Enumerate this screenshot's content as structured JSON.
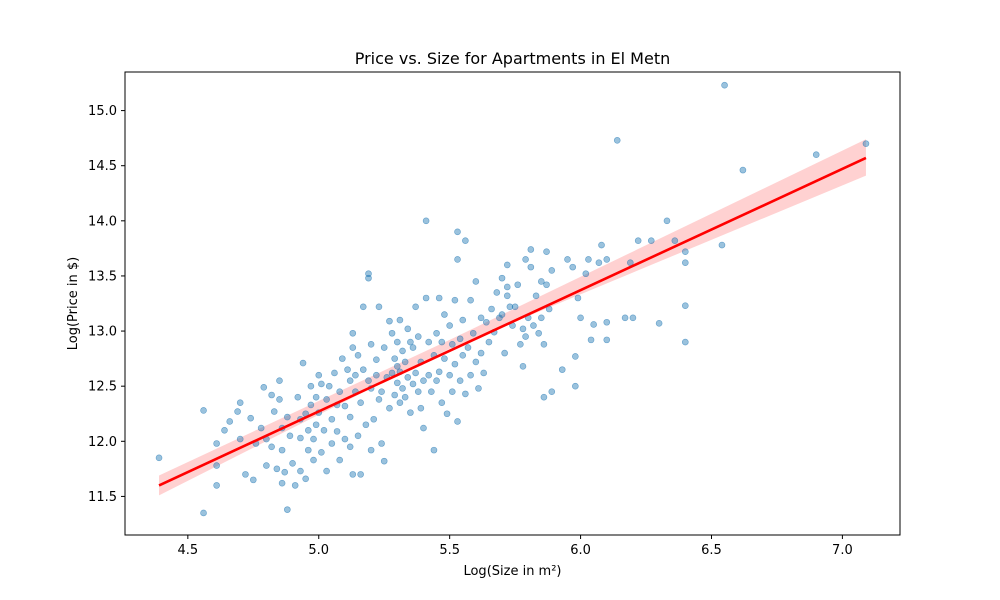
{
  "chart_data": {
    "type": "scatter",
    "title": "Price vs. Size for Apartments in El Metn",
    "xlabel": "Log(Size in m²)",
    "ylabel": "Log(Price in $)",
    "xlim": [
      4.26,
      7.22
    ],
    "ylim": [
      11.15,
      15.35
    ],
    "xticks": [
      "4.5",
      "5.0",
      "5.5",
      "6.0",
      "6.5",
      "7.0"
    ],
    "yticks": [
      "11.5",
      "12.0",
      "12.5",
      "13.0",
      "13.5",
      "14.0",
      "14.5",
      "15.0"
    ],
    "grid": false,
    "colors": {
      "points": "#1f77b4",
      "regression": "#ff0000",
      "band": "#ffb3b3"
    },
    "regression": {
      "x": [
        4.39,
        7.09
      ],
      "y": [
        11.6,
        14.57
      ]
    },
    "confidence_band": {
      "x": [
        4.39,
        5.5,
        7.09
      ],
      "lower": [
        11.51,
        12.84,
        14.41
      ],
      "upper": [
        11.69,
        12.92,
        14.74
      ]
    },
    "points": [
      [
        4.39,
        11.85
      ],
      [
        4.56,
        11.35
      ],
      [
        4.56,
        12.28
      ],
      [
        4.61,
        11.98
      ],
      [
        4.61,
        11.78
      ],
      [
        4.61,
        11.6
      ],
      [
        4.64,
        12.1
      ],
      [
        4.66,
        12.18
      ],
      [
        4.69,
        12.27
      ],
      [
        4.7,
        12.35
      ],
      [
        4.7,
        12.02
      ],
      [
        4.72,
        11.7
      ],
      [
        4.74,
        12.21
      ],
      [
        4.75,
        11.65
      ],
      [
        4.76,
        11.98
      ],
      [
        4.78,
        12.12
      ],
      [
        4.79,
        12.49
      ],
      [
        4.8,
        12.02
      ],
      [
        4.8,
        11.78
      ],
      [
        4.82,
        12.42
      ],
      [
        4.82,
        11.95
      ],
      [
        4.83,
        12.27
      ],
      [
        4.84,
        11.75
      ],
      [
        4.85,
        12.55
      ],
      [
        4.85,
        12.38
      ],
      [
        4.86,
        12.12
      ],
      [
        4.86,
        11.92
      ],
      [
        4.86,
        11.62
      ],
      [
        4.87,
        11.72
      ],
      [
        4.88,
        12.22
      ],
      [
        4.88,
        11.38
      ],
      [
        4.89,
        12.05
      ],
      [
        4.9,
        11.8
      ],
      [
        4.91,
        11.6
      ],
      [
        4.92,
        12.4
      ],
      [
        4.93,
        12.2
      ],
      [
        4.93,
        12.03
      ],
      [
        4.93,
        11.73
      ],
      [
        4.94,
        12.71
      ],
      [
        4.95,
        12.25
      ],
      [
        4.95,
        11.66
      ],
      [
        4.96,
        12.1
      ],
      [
        4.96,
        11.92
      ],
      [
        4.97,
        12.5
      ],
      [
        4.97,
        12.33
      ],
      [
        4.98,
        12.02
      ],
      [
        4.98,
        11.83
      ],
      [
        4.99,
        12.4
      ],
      [
        4.99,
        12.15
      ],
      [
        5.0,
        12.6
      ],
      [
        5.0,
        12.26
      ],
      [
        5.01,
        11.9
      ],
      [
        5.01,
        12.52
      ],
      [
        5.02,
        12.1
      ],
      [
        5.03,
        11.73
      ],
      [
        5.03,
        12.38
      ],
      [
        5.04,
        12.5
      ],
      [
        5.05,
        12.2
      ],
      [
        5.05,
        11.98
      ],
      [
        5.06,
        12.62
      ],
      [
        5.07,
        12.33
      ],
      [
        5.07,
        12.09
      ],
      [
        5.08,
        11.83
      ],
      [
        5.08,
        12.45
      ],
      [
        5.09,
        12.75
      ],
      [
        5.1,
        12.02
      ],
      [
        5.1,
        12.32
      ],
      [
        5.11,
        12.65
      ],
      [
        5.12,
        12.55
      ],
      [
        5.12,
        11.95
      ],
      [
        5.12,
        12.22
      ],
      [
        5.13,
        12.85
      ],
      [
        5.13,
        12.98
      ],
      [
        5.13,
        11.7
      ],
      [
        5.14,
        12.45
      ],
      [
        5.14,
        12.6
      ],
      [
        5.15,
        12.78
      ],
      [
        5.15,
        12.05
      ],
      [
        5.16,
        12.35
      ],
      [
        5.16,
        11.7
      ],
      [
        5.17,
        13.22
      ],
      [
        5.17,
        12.65
      ],
      [
        5.18,
        12.15
      ],
      [
        5.19,
        12.55
      ],
      [
        5.19,
        13.48
      ],
      [
        5.19,
        13.52
      ],
      [
        5.2,
        12.88
      ],
      [
        5.2,
        11.92
      ],
      [
        5.2,
        12.48
      ],
      [
        5.21,
        12.2
      ],
      [
        5.22,
        12.74
      ],
      [
        5.22,
        12.6
      ],
      [
        5.23,
        13.22
      ],
      [
        5.23,
        12.38
      ],
      [
        5.24,
        11.98
      ],
      [
        5.24,
        12.45
      ],
      [
        5.25,
        12.85
      ],
      [
        5.25,
        11.82
      ],
      [
        5.26,
        12.58
      ],
      [
        5.27,
        12.3
      ],
      [
        5.27,
        13.09
      ],
      [
        5.28,
        12.62
      ],
      [
        5.28,
        12.98
      ],
      [
        5.29,
        12.42
      ],
      [
        5.29,
        12.75
      ],
      [
        5.3,
        12.68
      ],
      [
        5.3,
        12.53
      ],
      [
        5.3,
        12.9
      ],
      [
        5.31,
        12.35
      ],
      [
        5.31,
        13.1
      ],
      [
        5.31,
        12.63
      ],
      [
        5.32,
        12.82
      ],
      [
        5.32,
        12.48
      ],
      [
        5.33,
        12.72
      ],
      [
        5.33,
        12.4
      ],
      [
        5.34,
        13.02
      ],
      [
        5.34,
        12.58
      ],
      [
        5.35,
        12.26
      ],
      [
        5.35,
        12.9
      ],
      [
        5.36,
        12.52
      ],
      [
        5.36,
        12.85
      ],
      [
        5.37,
        13.22
      ],
      [
        5.37,
        12.62
      ],
      [
        5.38,
        12.45
      ],
      [
        5.38,
        12.95
      ],
      [
        5.39,
        12.72
      ],
      [
        5.39,
        12.3
      ],
      [
        5.4,
        12.12
      ],
      [
        5.4,
        12.55
      ],
      [
        5.41,
        13.3
      ],
      [
        5.41,
        14.0
      ],
      [
        5.42,
        12.9
      ],
      [
        5.42,
        12.6
      ],
      [
        5.43,
        12.45
      ],
      [
        5.44,
        11.92
      ],
      [
        5.44,
        12.78
      ],
      [
        5.45,
        12.98
      ],
      [
        5.45,
        12.55
      ],
      [
        5.46,
        13.3
      ],
      [
        5.46,
        12.63
      ],
      [
        5.47,
        12.35
      ],
      [
        5.47,
        12.9
      ],
      [
        5.48,
        13.15
      ],
      [
        5.48,
        12.75
      ],
      [
        5.49,
        12.25
      ],
      [
        5.5,
        13.05
      ],
      [
        5.5,
        12.6
      ],
      [
        5.51,
        12.45
      ],
      [
        5.51,
        12.88
      ],
      [
        5.52,
        13.28
      ],
      [
        5.52,
        12.7
      ],
      [
        5.53,
        13.9
      ],
      [
        5.53,
        13.65
      ],
      [
        5.53,
        12.18
      ],
      [
        5.54,
        12.93
      ],
      [
        5.54,
        12.55
      ],
      [
        5.55,
        13.1
      ],
      [
        5.55,
        12.78
      ],
      [
        5.56,
        12.43
      ],
      [
        5.56,
        13.82
      ],
      [
        5.57,
        12.85
      ],
      [
        5.58,
        13.28
      ],
      [
        5.58,
        12.6
      ],
      [
        5.59,
        12.98
      ],
      [
        5.6,
        13.45
      ],
      [
        5.6,
        12.72
      ],
      [
        5.61,
        12.48
      ],
      [
        5.62,
        13.12
      ],
      [
        5.62,
        12.8
      ],
      [
        5.63,
        12.62
      ],
      [
        5.64,
        13.08
      ],
      [
        5.65,
        12.9
      ],
      [
        5.66,
        13.2
      ],
      [
        5.67,
        12.99
      ],
      [
        5.68,
        13.35
      ],
      [
        5.69,
        13.12
      ],
      [
        5.7,
        13.48
      ],
      [
        5.7,
        13.15
      ],
      [
        5.71,
        12.8
      ],
      [
        5.72,
        13.4
      ],
      [
        5.72,
        13.6
      ],
      [
        5.72,
        13.32
      ],
      [
        5.73,
        13.22
      ],
      [
        5.74,
        13.05
      ],
      [
        5.75,
        13.22
      ],
      [
        5.76,
        13.42
      ],
      [
        5.77,
        12.88
      ],
      [
        5.78,
        12.68
      ],
      [
        5.78,
        13.02
      ],
      [
        5.79,
        13.65
      ],
      [
        5.79,
        12.95
      ],
      [
        5.8,
        13.12
      ],
      [
        5.81,
        13.58
      ],
      [
        5.81,
        13.74
      ],
      [
        5.82,
        13.05
      ],
      [
        5.83,
        13.32
      ],
      [
        5.84,
        12.98
      ],
      [
        5.85,
        13.45
      ],
      [
        5.85,
        13.12
      ],
      [
        5.86,
        12.88
      ],
      [
        5.86,
        12.4
      ],
      [
        5.87,
        13.42
      ],
      [
        5.87,
        13.72
      ],
      [
        5.88,
        13.2
      ],
      [
        5.89,
        13.55
      ],
      [
        5.89,
        12.45
      ],
      [
        5.93,
        12.65
      ],
      [
        5.95,
        13.65
      ],
      [
        5.97,
        13.58
      ],
      [
        5.98,
        12.77
      ],
      [
        5.98,
        12.5
      ],
      [
        5.99,
        13.3
      ],
      [
        6.0,
        13.12
      ],
      [
        6.02,
        13.52
      ],
      [
        6.03,
        13.65
      ],
      [
        6.04,
        12.92
      ],
      [
        6.05,
        13.06
      ],
      [
        6.07,
        13.62
      ],
      [
        6.08,
        13.78
      ],
      [
        6.1,
        13.08
      ],
      [
        6.1,
        12.92
      ],
      [
        6.1,
        13.65
      ],
      [
        6.14,
        14.73
      ],
      [
        6.17,
        13.12
      ],
      [
        6.19,
        13.62
      ],
      [
        6.2,
        13.12
      ],
      [
        6.22,
        13.82
      ],
      [
        6.27,
        13.82
      ],
      [
        6.3,
        13.07
      ],
      [
        6.33,
        14.0
      ],
      [
        6.36,
        13.82
      ],
      [
        6.4,
        13.72
      ],
      [
        6.4,
        13.62
      ],
      [
        6.4,
        13.23
      ],
      [
        6.4,
        12.9
      ],
      [
        6.54,
        13.78
      ],
      [
        6.55,
        15.23
      ],
      [
        6.62,
        14.46
      ],
      [
        6.9,
        14.6
      ],
      [
        7.09,
        14.7
      ]
    ]
  }
}
